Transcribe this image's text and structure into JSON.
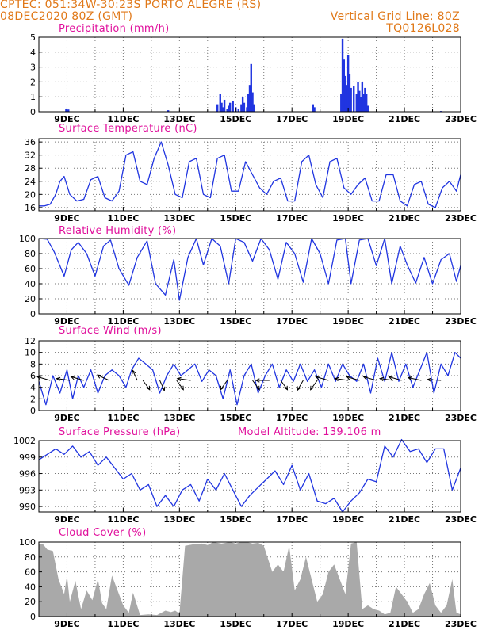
{
  "header": {
    "line1_left": "CPTEC:   051:34W-30:23S   PORTO ALEGRE (RS)",
    "line2_left": "08DEC2020 80Z (GMT)",
    "line2_right": "Vertical Grid Line: 80Z",
    "line3_right": "TQ0126L028"
  },
  "colors": {
    "header": "#e07818",
    "title": "#e0109c",
    "line": "#2035e0",
    "bar": "#2035e0",
    "cloud": "#a9a9a9"
  },
  "chart_data": [
    {
      "type": "bar",
      "title": "Precipitation (mm/h)",
      "x_labels": [
        "9DEC",
        "11DEC",
        "13DEC",
        "15DEC",
        "17DEC",
        "19DEC",
        "21DEC",
        "23DEC"
      ],
      "ylim": [
        0,
        5
      ],
      "yticks": [
        "0",
        "1",
        "2",
        "3",
        "4",
        "5"
      ],
      "grid": true,
      "x": [
        8.97,
        9.05,
        12.6,
        14.35,
        14.45,
        14.5,
        14.55,
        14.6,
        14.7,
        14.75,
        14.8,
        14.9,
        15.0,
        15.1,
        15.2,
        15.25,
        15.3,
        15.4,
        15.45,
        15.5,
        15.55,
        15.6,
        15.65,
        17.75,
        17.8,
        18.75,
        18.8,
        18.85,
        18.9,
        18.95,
        19.0,
        19.05,
        19.1,
        19.2,
        19.3,
        19.35,
        19.4,
        19.45,
        19.5,
        19.55,
        19.6,
        19.65,
        19.7,
        22.3
      ],
      "values": [
        0.2,
        0.15,
        0.1,
        0.5,
        1.2,
        0.6,
        0.3,
        0.8,
        0.2,
        0.4,
        0.6,
        0.7,
        0.3,
        0.2,
        0.5,
        1.0,
        0.6,
        0.3,
        1.2,
        1.8,
        3.2,
        1.3,
        0.5,
        0.5,
        0.3,
        1.2,
        4.9,
        3.5,
        2.4,
        1.8,
        3.8,
        2.5,
        1.6,
        1.7,
        1.2,
        2.0,
        1.4,
        1.0,
        2.0,
        1.2,
        1.6,
        1.2,
        0.4,
        0.05
      ]
    },
    {
      "type": "line",
      "title": "Surface Temperature (nC)",
      "x_labels": [
        "9DEC",
        "11DEC",
        "13DEC",
        "15DEC",
        "17DEC",
        "19DEC",
        "21DEC",
        "23DEC"
      ],
      "ylim": [
        15,
        37
      ],
      "yticks": [
        "16",
        "20",
        "24",
        "28",
        "32",
        "36"
      ],
      "grid": true,
      "x": [
        8.0,
        8.2,
        8.4,
        8.6,
        8.75,
        8.9,
        9.1,
        9.35,
        9.6,
        9.85,
        10.1,
        10.35,
        10.6,
        10.85,
        11.1,
        11.35,
        11.6,
        11.85,
        12.1,
        12.35,
        12.6,
        12.85,
        13.1,
        13.35,
        13.6,
        13.85,
        14.1,
        14.35,
        14.6,
        14.85,
        15.1,
        15.35,
        15.6,
        15.85,
        16.1,
        16.35,
        16.6,
        16.85,
        17.1,
        17.35,
        17.6,
        17.85,
        18.1,
        18.35,
        18.6,
        18.85,
        19.1,
        19.35,
        19.6,
        19.85,
        20.1,
        20.35,
        20.6,
        20.85,
        21.1,
        21.35,
        21.6,
        21.85,
        22.1,
        22.35,
        22.6,
        22.85,
        23.0
      ],
      "values": [
        16.5,
        16.5,
        17,
        20,
        24,
        25.5,
        20,
        18,
        18.5,
        24.5,
        25.5,
        19,
        18,
        21,
        32,
        33,
        24,
        23,
        31,
        36,
        29,
        20,
        19,
        30,
        31,
        20,
        19,
        31,
        32,
        21,
        21,
        30,
        26,
        22,
        20,
        24,
        25,
        18,
        18,
        30,
        32,
        23,
        19,
        30,
        31,
        22,
        20,
        23,
        25,
        18,
        18,
        26,
        26,
        18,
        16.5,
        23,
        24,
        17,
        16,
        22,
        24,
        21,
        26
      ]
    },
    {
      "type": "line",
      "title": "Relative Humidity (%)",
      "x_labels": [
        "9DEC",
        "11DEC",
        "13DEC",
        "15DEC",
        "17DEC",
        "19DEC",
        "21DEC",
        "23DEC"
      ],
      "ylim": [
        0,
        100
      ],
      "yticks": [
        "0",
        "20",
        "40",
        "60",
        "80",
        "100"
      ],
      "grid": true,
      "x": [
        8.0,
        8.3,
        8.55,
        8.9,
        9.15,
        9.4,
        9.7,
        10.0,
        10.3,
        10.55,
        10.85,
        11.2,
        11.5,
        11.85,
        12.15,
        12.5,
        12.8,
        13.0,
        13.3,
        13.6,
        13.85,
        14.15,
        14.45,
        14.75,
        15.0,
        15.3,
        15.6,
        15.9,
        16.2,
        16.5,
        16.8,
        17.1,
        17.4,
        17.7,
        18.0,
        18.3,
        18.6,
        18.9,
        19.1,
        19.4,
        19.7,
        20.0,
        20.3,
        20.55,
        20.85,
        21.1,
        21.4,
        21.7,
        22.0,
        22.3,
        22.6,
        22.85,
        23.0
      ],
      "values": [
        100,
        99,
        82,
        50,
        85,
        95,
        80,
        50,
        90,
        98,
        60,
        38,
        75,
        97,
        40,
        25,
        72,
        18,
        75,
        100,
        65,
        100,
        90,
        40,
        100,
        95,
        70,
        100,
        85,
        46,
        95,
        80,
        42,
        100,
        80,
        40,
        98,
        100,
        40,
        98,
        100,
        64,
        100,
        40,
        90,
        65,
        41,
        75,
        40,
        72,
        80,
        43,
        64
      ]
    },
    {
      "type": "line",
      "title": "Surface Wind (m/s)",
      "x_labels": [
        "9DEC",
        "11DEC",
        "13DEC",
        "15DEC",
        "17DEC",
        "19DEC",
        "21DEC",
        "23DEC"
      ],
      "ylim": [
        0,
        12
      ],
      "yticks": [
        "0",
        "2",
        "4",
        "6",
        "8",
        "10",
        "12"
      ],
      "grid": true,
      "vectors": true,
      "x": [
        8.0,
        8.25,
        8.5,
        8.75,
        9.0,
        9.2,
        9.4,
        9.6,
        9.85,
        10.1,
        10.35,
        10.6,
        10.85,
        11.1,
        11.3,
        11.55,
        11.8,
        12.05,
        12.3,
        12.55,
        12.8,
        13.05,
        13.3,
        13.55,
        13.8,
        14.05,
        14.3,
        14.55,
        14.8,
        15.05,
        15.3,
        15.55,
        15.8,
        16.05,
        16.3,
        16.55,
        16.8,
        17.05,
        17.3,
        17.55,
        17.8,
        18.05,
        18.3,
        18.55,
        18.8,
        19.05,
        19.3,
        19.55,
        19.8,
        20.05,
        20.3,
        20.55,
        20.8,
        21.05,
        21.3,
        21.55,
        21.8,
        22.05,
        22.3,
        22.55,
        22.8,
        23.0
      ],
      "values": [
        5,
        1,
        6,
        3,
        7,
        2,
        6,
        4,
        7,
        3,
        6,
        7,
        6,
        4,
        7,
        9,
        8,
        7,
        3,
        6,
        8,
        6,
        7,
        8,
        5,
        7,
        6,
        2,
        7,
        1,
        6,
        8,
        3,
        6,
        8,
        4,
        7,
        5,
        8,
        5,
        7,
        4,
        8,
        5,
        8,
        6,
        5,
        8,
        3,
        9,
        5,
        10,
        5,
        8,
        4,
        7,
        10,
        3,
        8,
        6,
        10,
        9
      ]
    },
    {
      "type": "line",
      "title": "Surface Pressure (hPa)",
      "subtitle": "Model Altitude: 139.106 m",
      "x_labels": [
        "9DEC",
        "11DEC",
        "13DEC",
        "15DEC",
        "17DEC",
        "19DEC",
        "21DEC",
        "23DEC"
      ],
      "ylim": [
        989,
        1002
      ],
      "yticks": [
        "990",
        "993",
        "996",
        "999",
        "1002"
      ],
      "grid": true,
      "x": [
        8.0,
        8.3,
        8.6,
        8.9,
        9.2,
        9.5,
        9.8,
        10.1,
        10.4,
        10.7,
        11.0,
        11.3,
        11.6,
        11.9,
        12.2,
        12.5,
        12.8,
        13.1,
        13.4,
        13.7,
        14.0,
        14.3,
        14.6,
        14.9,
        15.2,
        15.5,
        15.8,
        16.1,
        16.4,
        16.7,
        17.0,
        17.3,
        17.6,
        17.9,
        18.2,
        18.5,
        18.8,
        19.1,
        19.4,
        19.7,
        20.0,
        20.3,
        20.6,
        20.9,
        21.2,
        21.5,
        21.8,
        22.1,
        22.4,
        22.7,
        23.0
      ],
      "values": [
        998.5,
        999.5,
        1000.5,
        999.5,
        1001,
        999,
        1000,
        997.5,
        999,
        997,
        995,
        996,
        993,
        994,
        990,
        992,
        990,
        993,
        994,
        991,
        995,
        993,
        996,
        993,
        990,
        992,
        993.5,
        995,
        996.5,
        994,
        997.5,
        993,
        996,
        991,
        990.5,
        991.5,
        989,
        991,
        992.5,
        995,
        994.5,
        1001,
        999,
        1002.2,
        1000,
        1000.5,
        998,
        1000.5,
        1000.5,
        993,
        997
      ]
    },
    {
      "type": "area",
      "title": "Cloud Cover (%)",
      "x_labels": [
        "9DEC",
        "11DEC",
        "13DEC",
        "15DEC",
        "17DEC",
        "19DEC",
        "21DEC",
        "23DEC"
      ],
      "ylim": [
        0,
        100
      ],
      "yticks": [
        "0",
        "20",
        "40",
        "60",
        "80",
        "100"
      ],
      "grid": true,
      "x": [
        8.0,
        8.15,
        8.3,
        8.5,
        8.7,
        8.9,
        9.0,
        9.1,
        9.3,
        9.5,
        9.7,
        9.9,
        10.1,
        10.25,
        10.4,
        10.6,
        10.8,
        11.0,
        11.2,
        11.35,
        11.6,
        11.9,
        12.2,
        12.5,
        12.7,
        12.85,
        13.0,
        13.1,
        13.2,
        13.5,
        13.8,
        14.0,
        14.2,
        14.5,
        14.8,
        15.0,
        15.2,
        15.4,
        15.6,
        15.8,
        16.0,
        16.3,
        16.5,
        16.7,
        16.9,
        17.1,
        17.3,
        17.5,
        17.7,
        17.9,
        18.1,
        18.3,
        18.5,
        18.7,
        18.9,
        19.1,
        19.3,
        19.5,
        19.7,
        19.9,
        20.1,
        20.3,
        20.5,
        20.7,
        20.9,
        21.1,
        21.3,
        21.5,
        21.7,
        21.9,
        22.1,
        22.3,
        22.5,
        22.7,
        22.85,
        23.0
      ],
      "values": [
        98,
        97,
        90,
        88,
        50,
        30,
        55,
        20,
        48,
        10,
        35,
        22,
        50,
        18,
        10,
        55,
        35,
        15,
        5,
        32,
        2,
        3,
        2,
        8,
        6,
        8,
        4,
        50,
        95,
        97,
        98,
        96,
        100,
        98,
        100,
        98,
        100,
        100,
        98,
        99,
        95,
        60,
        70,
        60,
        95,
        35,
        50,
        80,
        50,
        20,
        30,
        60,
        70,
        50,
        30,
        98,
        100,
        10,
        15,
        10,
        8,
        3,
        5,
        40,
        30,
        20,
        5,
        10,
        30,
        45,
        15,
        5,
        15,
        50,
        5,
        3
      ]
    }
  ]
}
